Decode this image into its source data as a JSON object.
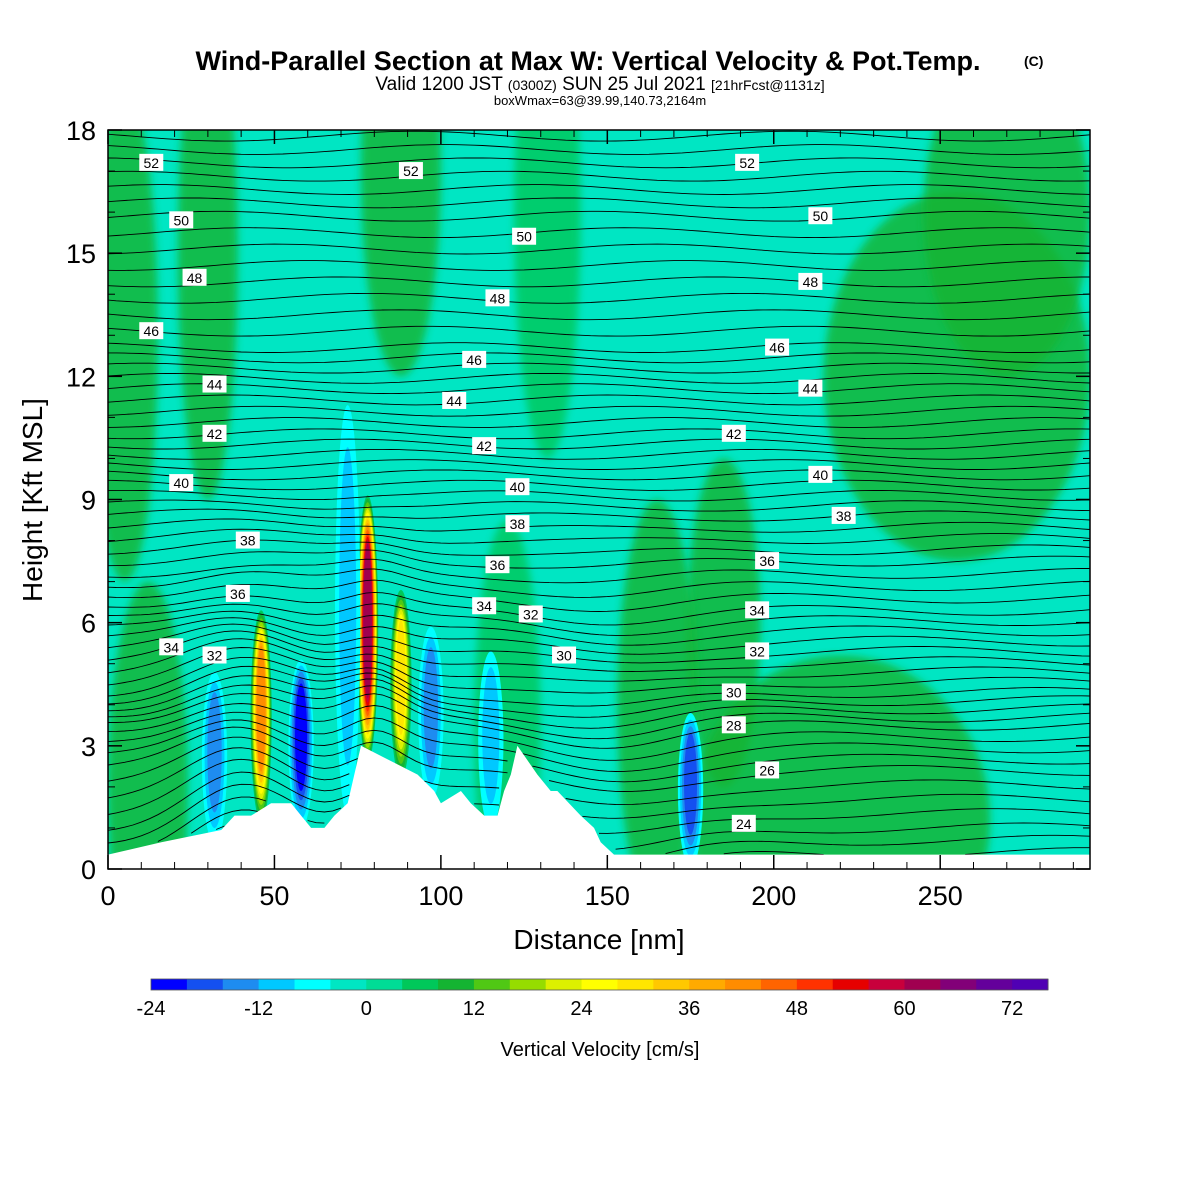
{
  "title": {
    "main": "Wind-Parallel Section at Max W: Vertical Velocity & Pot.Temp.",
    "main_mark": "(C)",
    "valid_prefix": "Valid 1200 JST",
    "valid_zulu": "(0300Z)",
    "valid_date": "SUN 25 Jul 2021",
    "forecast": "[21hrFcst@1131z]",
    "box": "boxWmax=63@39.99,140.73,2164m"
  },
  "chart_data": {
    "type": "heatmap",
    "xlabel": "Distance [nm]",
    "ylabel": "Height [Kft MSL]",
    "xlim": [
      0,
      295
    ],
    "ylim": [
      0,
      18
    ],
    "x_ticks": [
      0,
      50,
      100,
      150,
      200,
      250
    ],
    "y_ticks": [
      0,
      3,
      6,
      9,
      12,
      15,
      18
    ],
    "colorbar": {
      "title": "Vertical Velocity [cm/s]",
      "min": -24,
      "max": 76,
      "step": 4,
      "tick_values": [
        -24,
        -12,
        0,
        12,
        24,
        36,
        48,
        60,
        72
      ],
      "tick_labels": [
        "-24",
        "-12",
        "0",
        "12",
        "24",
        "36",
        "48",
        "60",
        "72"
      ],
      "colors": [
        "#0000ff",
        "#1450f0",
        "#1e8cf0",
        "#00c8ff",
        "#00ffff",
        "#00e6c3",
        "#00dc96",
        "#00c85a",
        "#14b432",
        "#50c814",
        "#96dc00",
        "#dcf000",
        "#ffff00",
        "#ffe600",
        "#ffc800",
        "#ffaa00",
        "#ff8c00",
        "#ff6400",
        "#ff3200",
        "#e60000",
        "#c8003c",
        "#a00050",
        "#820078",
        "#64009b",
        "#5000b4"
      ]
    },
    "vertical_velocity_features": [
      {
        "kind": "updraft",
        "x": 46,
        "y_top": 6.0,
        "peak_w": 42
      },
      {
        "kind": "downdraft",
        "x": 32,
        "y_top": 4.5,
        "peak_w": -14
      },
      {
        "kind": "downdraft",
        "x": 58,
        "y_top": 4.8,
        "peak_w": -20
      },
      {
        "kind": "updraft",
        "x": 78,
        "y_top": 8.8,
        "peak_w": 63
      },
      {
        "kind": "downdraft",
        "x": 72,
        "y_top": 11.0,
        "peak_w": -8
      },
      {
        "kind": "updraft",
        "x": 88,
        "y_top": 6.5,
        "peak_w": 28
      },
      {
        "kind": "downdraft",
        "x": 97,
        "y_top": 5.6,
        "peak_w": -14
      },
      {
        "kind": "downdraft",
        "x": 115,
        "y_top": 5.0,
        "peak_w": -10
      },
      {
        "kind": "downdraft",
        "x": 175,
        "y_top": 3.5,
        "peak_w": -16
      }
    ],
    "potential_temperature": {
      "units": "C",
      "labeled_isentropes": [
        {
          "value": 52,
          "labels": [
            [
              13,
              17.2
            ],
            [
              91,
              17.0
            ],
            [
              192,
              17.2
            ]
          ]
        },
        {
          "value": 50,
          "labels": [
            [
              22,
              15.8
            ],
            [
              125,
              15.4
            ],
            [
              214,
              15.9
            ]
          ]
        },
        {
          "value": 48,
          "labels": [
            [
              26,
              14.4
            ],
            [
              117,
              13.9
            ],
            [
              211,
              14.3
            ]
          ]
        },
        {
          "value": 46,
          "labels": [
            [
              13,
              13.1
            ],
            [
              110,
              12.4
            ],
            [
              201,
              12.7
            ]
          ]
        },
        {
          "value": 44,
          "labels": [
            [
              32,
              11.8
            ],
            [
              104,
              11.4
            ],
            [
              211,
              11.7
            ]
          ]
        },
        {
          "value": 42,
          "labels": [
            [
              32,
              10.6
            ],
            [
              113,
              10.3
            ],
            [
              188,
              10.6
            ]
          ]
        },
        {
          "value": 40,
          "labels": [
            [
              22,
              9.4
            ],
            [
              123,
              9.3
            ],
            [
              214,
              9.6
            ]
          ]
        },
        {
          "value": 38,
          "labels": [
            [
              42,
              8.0
            ],
            [
              123,
              8.4
            ],
            [
              221,
              8.6
            ]
          ]
        },
        {
          "value": 36,
          "labels": [
            [
              39,
              6.7
            ],
            [
              117,
              7.4
            ],
            [
              198,
              7.5
            ]
          ]
        },
        {
          "value": 34,
          "labels": [
            [
              19,
              5.4
            ],
            [
              113,
              6.4
            ],
            [
              195,
              6.3
            ]
          ]
        },
        {
          "value": 32,
          "labels": [
            [
              32,
              5.2
            ],
            [
              127,
              6.2
            ],
            [
              195,
              5.3
            ]
          ]
        },
        {
          "value": 30,
          "labels": [
            [
              137,
              5.2
            ],
            [
              188,
              4.3
            ]
          ]
        },
        {
          "value": 28,
          "labels": [
            [
              188,
              3.5
            ]
          ]
        },
        {
          "value": 26,
          "labels": [
            [
              198,
              2.4
            ]
          ]
        },
        {
          "value": 24,
          "labels": [
            [
              191,
              1.1
            ]
          ]
        }
      ]
    },
    "terrain": {
      "units": "Kft MSL",
      "x": [
        0,
        16,
        34,
        38,
        43,
        49,
        55,
        58,
        61,
        65,
        68,
        72,
        74,
        76,
        93,
        98,
        100,
        106,
        109,
        113,
        117,
        119,
        121,
        123,
        129,
        133,
        135,
        142,
        146,
        148,
        152,
        154,
        160,
        175,
        295
      ],
      "y": [
        0.35,
        0.65,
        0.95,
        1.3,
        1.3,
        1.6,
        1.6,
        1.3,
        1.0,
        1.0,
        1.3,
        1.6,
        2.3,
        3.0,
        2.3,
        1.9,
        1.6,
        1.9,
        1.6,
        1.3,
        1.3,
        1.9,
        2.3,
        3.0,
        2.3,
        1.9,
        1.9,
        1.3,
        1.0,
        0.65,
        0.35,
        0.35,
        0.35,
        0.35,
        0.35
      ]
    }
  }
}
